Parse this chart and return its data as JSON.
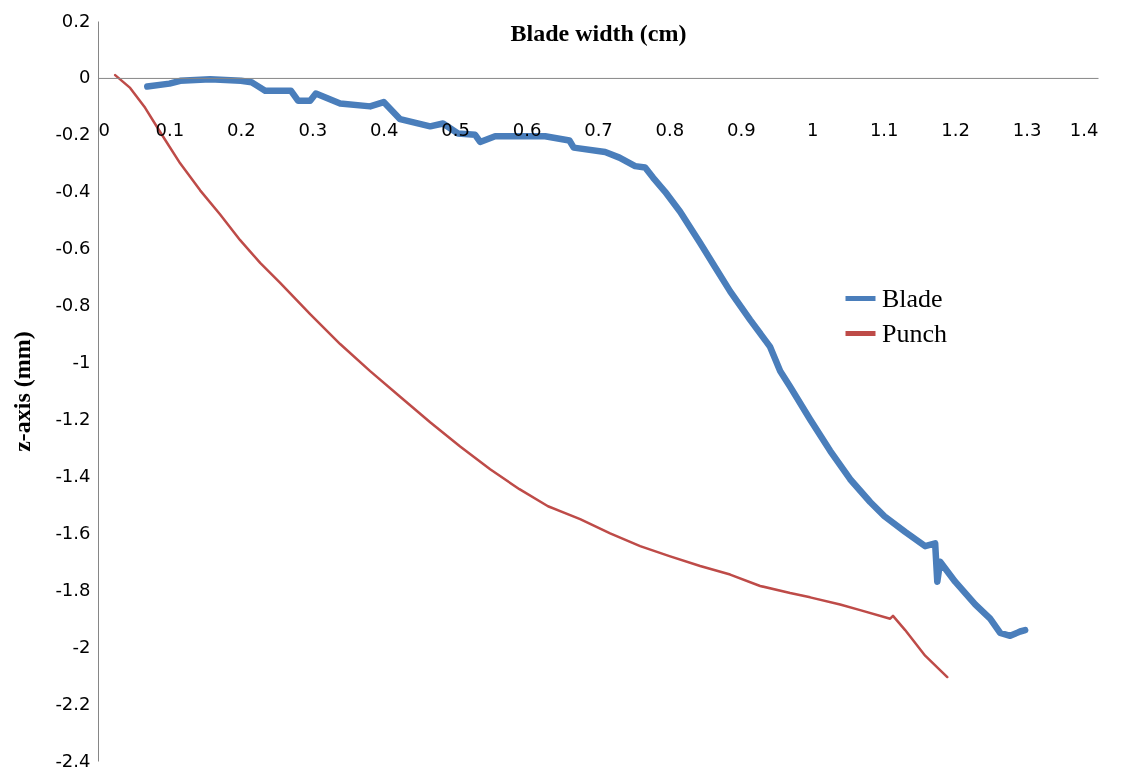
{
  "chart_data": {
    "type": "line",
    "xlabel": "Blade width (cm)",
    "ylabel": "z-axis (mm)",
    "xlim": [
      0,
      1.4
    ],
    "xticks": [
      0,
      0.1,
      0.2,
      0.3,
      0.4,
      0.5,
      0.6,
      0.7,
      0.8,
      0.9,
      1,
      1.1,
      1.2,
      1.3,
      1.4
    ],
    "ylim": [
      -2.4,
      0.2
    ],
    "yticks": [
      -2.4,
      -2.2,
      -2,
      -1.8,
      -1.6,
      -1.4,
      -1.2,
      -1,
      -0.8,
      -0.6,
      -0.4,
      -0.2,
      0,
      0.2
    ],
    "grid": false,
    "legend": "right",
    "marker": "none",
    "series": [
      {
        "name": "Blade",
        "color": "#4a7ebb",
        "x": [
          0.069,
          0.1,
          0.115,
          0.157,
          0.2,
          0.215,
          0.234,
          0.27,
          0.28,
          0.297,
          0.305,
          0.339,
          0.381,
          0.4,
          0.423,
          0.465,
          0.483,
          0.504,
          0.528,
          0.535,
          0.556,
          0.59,
          0.626,
          0.66,
          0.666,
          0.71,
          0.73,
          0.752,
          0.766,
          0.777,
          0.794,
          0.815,
          0.843,
          0.864,
          0.885,
          0.913,
          0.941,
          0.955,
          0.969,
          0.997,
          1.025,
          1.053,
          1.081,
          1.101,
          1.13,
          1.158,
          1.172,
          1.175,
          1.179,
          1.2,
          1.228,
          1.249,
          1.263,
          1.277,
          1.291,
          1.298
        ],
        "values": [
          -0.03,
          -0.02,
          -0.01,
          -0.005,
          -0.01,
          -0.015,
          -0.045,
          -0.045,
          -0.08,
          -0.08,
          -0.055,
          -0.09,
          -0.1,
          -0.085,
          -0.145,
          -0.17,
          -0.16,
          -0.195,
          -0.2,
          -0.225,
          -0.205,
          -0.205,
          -0.205,
          -0.22,
          -0.245,
          -0.26,
          -0.28,
          -0.31,
          -0.315,
          -0.35,
          -0.4,
          -0.47,
          -0.58,
          -0.665,
          -0.75,
          -0.85,
          -0.945,
          -1.03,
          -1.085,
          -1.2,
          -1.31,
          -1.41,
          -1.49,
          -1.54,
          -1.595,
          -1.645,
          -1.635,
          -1.77,
          -1.7,
          -1.77,
          -1.85,
          -1.9,
          -1.95,
          -1.96,
          -1.945,
          -1.94
        ]
      },
      {
        "name": "Punch",
        "color": "#be4b48",
        "x": [
          0.024,
          0.045,
          0.066,
          0.087,
          0.115,
          0.143,
          0.171,
          0.199,
          0.227,
          0.255,
          0.297,
          0.339,
          0.381,
          0.423,
          0.465,
          0.507,
          0.549,
          0.59,
          0.63,
          0.675,
          0.717,
          0.759,
          0.8,
          0.843,
          0.885,
          0.927,
          0.969,
          0.997,
          1.039,
          1.067,
          1.109,
          1.113,
          1.13,
          1.158,
          1.189
        ],
        "values": [
          0.01,
          -0.035,
          -0.105,
          -0.19,
          -0.3,
          -0.395,
          -0.48,
          -0.57,
          -0.65,
          -0.72,
          -0.83,
          -0.935,
          -1.03,
          -1.12,
          -1.21,
          -1.295,
          -1.375,
          -1.445,
          -1.505,
          -1.55,
          -1.6,
          -1.645,
          -1.68,
          -1.715,
          -1.745,
          -1.785,
          -1.81,
          -1.825,
          -1.85,
          -1.87,
          -1.9,
          -1.89,
          -1.94,
          -2.03,
          -2.105
        ]
      }
    ]
  }
}
